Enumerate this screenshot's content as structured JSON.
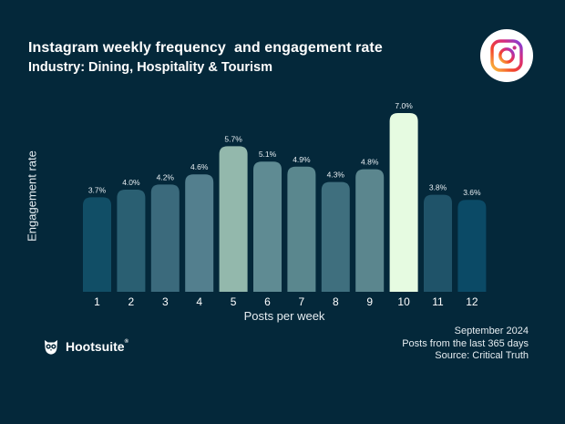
{
  "header": {
    "title": "Instagram weekly frequency  and engagement rate",
    "subtitle": "Industry: Dining, Hospitality & Tourism",
    "logo_icon": "instagram-icon"
  },
  "chart_data": {
    "type": "bar",
    "title": "Instagram weekly frequency  and engagement rate",
    "subtitle": "Industry: Dining, Hospitality & Tourism",
    "xlabel": "Posts per week",
    "ylabel": "Engagement rate",
    "categories": [
      "1",
      "2",
      "3",
      "4",
      "5",
      "6",
      "7",
      "8",
      "9",
      "10",
      "11",
      "12"
    ],
    "values": [
      3.7,
      4.0,
      4.2,
      4.6,
      5.7,
      5.1,
      4.9,
      4.3,
      4.8,
      7.0,
      3.8,
      3.6
    ],
    "value_labels": [
      "3.7%",
      "4.0%",
      "4.2%",
      "4.6%",
      "5.7%",
      "5.1%",
      "4.9%",
      "4.3%",
      "4.8%",
      "7.0%",
      "3.8%",
      "3.6%"
    ],
    "ylim": [
      0,
      7.0
    ],
    "grid": false,
    "legend": "none",
    "colors": [
      "#114e66",
      "#2a5f72",
      "#3b6a7c",
      "#537f8e",
      "#93b8ac",
      "#5f8b93",
      "#5a878e",
      "#3f6f7e",
      "#5b868e",
      "#e6fbe1",
      "#1f5369",
      "#0b4a66"
    ]
  },
  "footer": {
    "date": "September 2024",
    "scope": "Posts from the last 365 days",
    "source": "Source: Critical Truth",
    "brand": "Hootsuite",
    "brand_mark": "®",
    "brand_icon": "owl-icon"
  }
}
